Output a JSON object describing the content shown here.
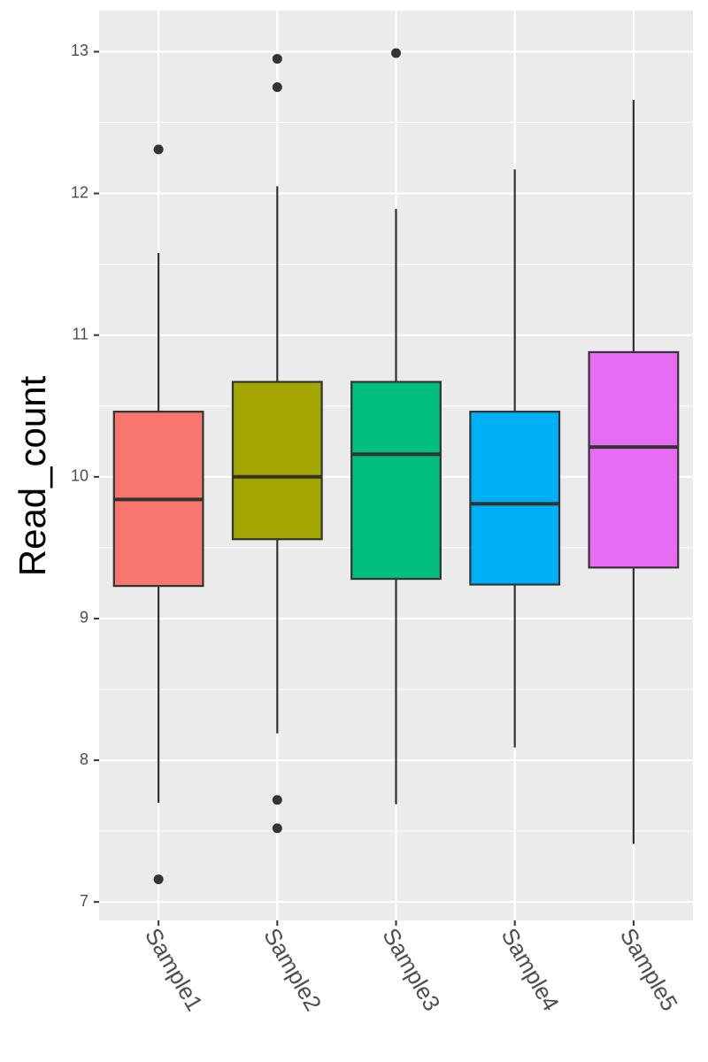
{
  "chart_data": {
    "type": "box",
    "ylabel": "Read_count",
    "categories": [
      "Sample1",
      "Sample2",
      "Sample3",
      "Sample4",
      "Sample5"
    ],
    "boxes": [
      {
        "color": "#F8766D",
        "min": 7.7,
        "q1": 9.23,
        "median": 9.84,
        "q3": 10.46,
        "max": 11.58,
        "outliers": [
          12.31,
          7.16
        ]
      },
      {
        "color": "#A3A500",
        "min": 8.19,
        "q1": 9.56,
        "median": 10.0,
        "q3": 10.67,
        "max": 12.05,
        "outliers": [
          12.95,
          12.75,
          7.72,
          7.52
        ]
      },
      {
        "color": "#00BF7D",
        "min": 7.69,
        "q1": 9.28,
        "median": 10.16,
        "q3": 10.67,
        "max": 11.89,
        "outliers": [
          12.99
        ]
      },
      {
        "color": "#00B0F6",
        "min": 8.09,
        "q1": 9.24,
        "median": 9.81,
        "q3": 10.46,
        "max": 12.17,
        "outliers": []
      },
      {
        "color": "#E76BF3",
        "min": 7.41,
        "q1": 9.36,
        "median": 10.21,
        "q3": 10.88,
        "max": 12.66,
        "outliers": []
      }
    ],
    "ylim": [
      6.87,
      13.29
    ],
    "yticks": [
      7,
      8,
      9,
      10,
      11,
      12,
      13
    ],
    "yminor": [
      7.5,
      8.5,
      9.5,
      10.5,
      11.5,
      12.5
    ],
    "grid": true
  }
}
